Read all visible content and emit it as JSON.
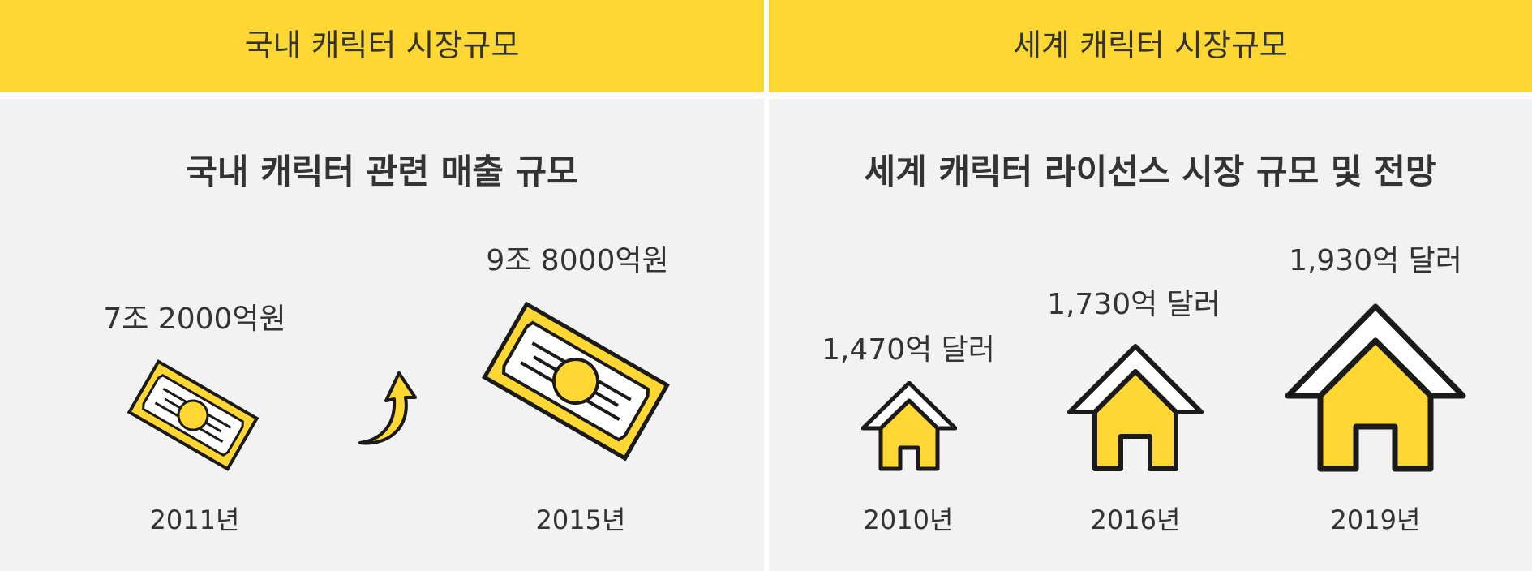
{
  "left_panel": {
    "header": "국내 캐릭터 시장규모",
    "title": "국내 캐릭터 관련 매출 규모",
    "items": [
      {
        "value": "7조 2000억원",
        "year": "2011년"
      },
      {
        "value": "9조 8000억원",
        "year": "2015년"
      }
    ]
  },
  "right_panel": {
    "header": "세계 캐릭터 시장규모",
    "title": "세계 캐릭터 라이선스 시장 규모 및 전망",
    "items": [
      {
        "value": "1,470억 달러",
        "year": "2010년"
      },
      {
        "value": "1,730억 달러",
        "year": "2016년"
      },
      {
        "value": "1,930억 달러",
        "year": "2019년"
      }
    ]
  },
  "colors": {
    "accent": "#ffd732",
    "background": "#f2f2f2",
    "text": "#333333"
  },
  "icons": [
    "banknote-icon",
    "up-arrow-icon",
    "house-icon"
  ]
}
